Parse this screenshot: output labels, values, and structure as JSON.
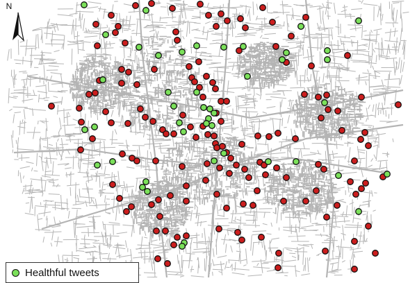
{
  "north_label": "N",
  "legend": {
    "items": [
      {
        "label": "Healthful tweets",
        "color": "#7be05a"
      }
    ]
  },
  "colors": {
    "roads": "#b4b4b4",
    "healthful": "#7be05a",
    "unhealthful": "#cc1e1e",
    "marker_outline": "#111111"
  }
}
